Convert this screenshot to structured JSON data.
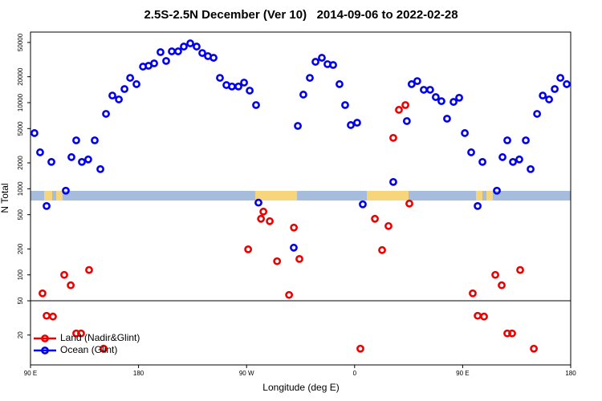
{
  "chart_data": {
    "type": "scatter",
    "title": "2.5S-2.5N December (Ver 10)   2014-09-06 to 2022-02-28",
    "x_label": "Longitude (deg E)",
    "y_label": "N Total",
    "log_y": true,
    "legend": "bottom-left",
    "hline": 50,
    "xlim": [
      90,
      540
    ],
    "xticks": [
      {
        "value": 90,
        "label": "90 E"
      },
      180,
      {
        "value": 270,
        "label": "90 W"
      },
      {
        "value": 360,
        "label": "0"
      },
      {
        "value": 450,
        "label": "90 E"
      },
      {
        "value": 540,
        "label": "180"
      }
    ],
    "ylim": [
      9,
      66000
    ],
    "yticks": [
      20,
      50,
      100,
      200,
      500,
      1000,
      2000,
      5000,
      10000,
      20000,
      50000
    ],
    "series": [
      {
        "name": "Land (Nadir&Glint)",
        "color": "#ee0000",
        "x": [
          100.0,
          103.4,
          108.7,
          118.1,
          123.5,
          128.1,
          132.1,
          138.8,
          150.9,
          271.3,
          282.0,
          284.0,
          289.3,
          295.4,
          305.4,
          309.4,
          314.0,
          364.8,
          376.9,
          382.9,
          388.2,
          392.2,
          396.9,
          402.3,
          405.6,
          458.4,
          462.5,
          467.8,
          477.2,
          482.5,
          487.2,
          491.2,
          497.9,
          509.3
        ],
        "values": [
          61,
          33.5,
          32.8,
          100,
          75.7,
          20.9,
          20.9,
          114,
          13.9,
          198,
          448,
          543,
          420,
          144,
          58.5,
          354,
          153,
          13.9,
          448,
          194,
          369,
          3900,
          8250,
          9380,
          673,
          61,
          33.5,
          32.8,
          100,
          75.7,
          20.9,
          20.9,
          114,
          13.9
        ]
      },
      {
        "name": "Ocean (Glint)",
        "color": "#0000ee",
        "x": [
          93.3,
          98.0,
          103.4,
          107.4,
          119.4,
          124.1,
          128.1,
          132.8,
          138.1,
          143.5,
          148.2,
          152.9,
          158.2,
          163.6,
          168.3,
          173.0,
          178.3,
          183.7,
          188.3,
          193.0,
          198.3,
          203.0,
          207.7,
          213.0,
          217.7,
          223.1,
          228.4,
          233.1,
          237.8,
          242.5,
          247.8,
          253.2,
          257.8,
          263.2,
          267.9,
          272.6,
          277.9,
          279.9,
          309.3,
          312.7,
          317.3,
          322.7,
          327.4,
          332.7,
          337.4,
          342.1,
          347.4,
          352.1,
          356.8,
          362.1,
          366.8,
          392.2,
          403.5,
          407.5,
          412.2,
          417.6,
          422.9,
          427.6,
          432.3,
          437.0,
          442.4,
          447.1,
          451.8,
          457.1,
          462.5,
          466.5,
          478.5,
          483.2,
          487.2,
          491.9,
          497.2,
          502.6,
          506.6,
          512.0,
          516.7,
          522.0,
          526.7,
          531.4,
          536.7
        ],
        "values": [
          4430,
          2650,
          630,
          2050,
          950,
          2330,
          3650,
          2050,
          2190,
          3650,
          1690,
          7410,
          12100,
          10900,
          14400,
          19400,
          16400,
          26200,
          26800,
          28600,
          38600,
          30500,
          39400,
          39400,
          44800,
          48800,
          44800,
          37700,
          34700,
          33200,
          19400,
          16000,
          15400,
          15400,
          17100,
          13800,
          9380,
          690,
          207,
          5370,
          12400,
          19400,
          29800,
          33200,
          28000,
          27400,
          16400,
          9380,
          5490,
          5850,
          660,
          1200,
          6110,
          16400,
          17800,
          14100,
          14100,
          11600,
          10400,
          6510,
          10200,
          11400,
          4430,
          2650,
          630,
          2050,
          950,
          2330,
          3650,
          2050,
          2190,
          3650,
          1690,
          7410,
          12100,
          10900,
          14400,
          19400,
          16400
        ]
      }
    ]
  }
}
